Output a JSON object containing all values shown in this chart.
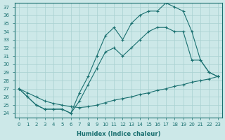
{
  "xlabel": "Humidex (Indice chaleur)",
  "bg_color": "#cce8e8",
  "line_color": "#1a7070",
  "xlim": [
    -0.5,
    23.5
  ],
  "ylim": [
    23.5,
    37.5
  ],
  "yticks": [
    24,
    25,
    26,
    27,
    28,
    29,
    30,
    31,
    32,
    33,
    34,
    35,
    36,
    37
  ],
  "xticks": [
    0,
    1,
    2,
    3,
    4,
    5,
    6,
    7,
    8,
    9,
    10,
    11,
    12,
    13,
    14,
    15,
    16,
    17,
    18,
    19,
    20,
    21,
    22,
    23
  ],
  "line1_x": [
    0,
    1,
    2,
    3,
    4,
    5,
    6,
    7,
    8,
    9,
    10,
    11,
    12,
    13,
    14,
    15,
    16,
    17,
    18,
    19,
    20,
    21,
    22,
    23
  ],
  "line1_y": [
    27.0,
    26.5,
    26.0,
    25.5,
    25.2,
    25.0,
    24.8,
    24.7,
    24.8,
    25.0,
    25.3,
    25.6,
    25.8,
    26.0,
    26.3,
    26.5,
    26.8,
    27.0,
    27.3,
    27.5,
    27.8,
    28.0,
    28.2,
    28.5
  ],
  "line2_x": [
    0,
    1,
    2,
    3,
    4,
    5,
    6,
    7,
    8,
    9,
    10,
    11,
    12,
    13,
    14,
    15,
    16,
    17,
    18,
    19,
    20,
    21,
    22,
    23
  ],
  "line2_y": [
    27.0,
    26.0,
    25.0,
    24.5,
    24.5,
    24.5,
    24.0,
    25.5,
    27.5,
    29.5,
    31.5,
    32.0,
    31.0,
    32.0,
    33.0,
    34.0,
    34.5,
    34.5,
    34.0,
    34.0,
    30.5,
    30.5,
    29.0,
    28.5
  ],
  "line3_x": [
    0,
    1,
    2,
    3,
    4,
    5,
    6,
    7,
    8,
    9,
    10,
    11,
    12,
    13,
    14,
    15,
    16,
    17,
    18,
    19,
    20,
    21,
    22,
    23
  ],
  "line3_y": [
    27.0,
    26.0,
    25.0,
    24.5,
    24.5,
    24.5,
    24.0,
    26.5,
    28.5,
    31.0,
    33.5,
    34.5,
    33.0,
    35.0,
    36.0,
    36.5,
    36.5,
    37.5,
    37.0,
    36.5,
    34.0,
    30.5,
    29.0,
    28.5
  ]
}
